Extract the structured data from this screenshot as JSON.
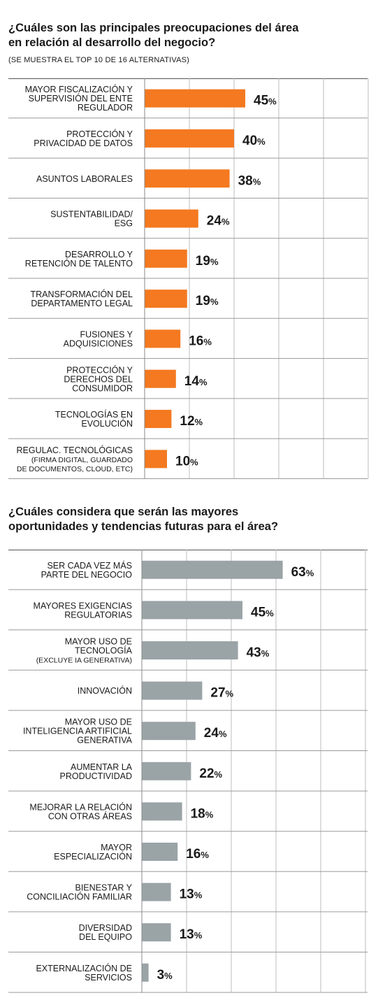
{
  "chart_data": [
    {
      "type": "bar",
      "orientation": "horizontal",
      "title": "¿Cuáles son las principales preocupaciones del área en relación al desarrollo del negocio?",
      "subtitle": "(SE MUESTRA EL TOP 10 DE 16 ALTERNATIVAS)",
      "color": "#f47920",
      "categories": [
        {
          "lines": [
            "MAYOR FISCALIZACIÓN Y",
            "SUPERVISIÓN DEL ENTE",
            "REGULADOR"
          ],
          "small": []
        },
        {
          "lines": [
            "PROTECCIÓN Y",
            "PRIVACIDAD DE DATOS"
          ],
          "small": []
        },
        {
          "lines": [
            "ASUNTOS LABORALES"
          ],
          "small": []
        },
        {
          "lines": [
            "SUSTENTABILIDAD/",
            "ESG"
          ],
          "small": []
        },
        {
          "lines": [
            "DESARROLLO Y",
            "RETENCIÓN DE TALENTO"
          ],
          "small": []
        },
        {
          "lines": [
            "TRANSFORMACIÓN DEL",
            "DEPARTAMENTO LEGAL"
          ],
          "small": []
        },
        {
          "lines": [
            "FUSIONES Y",
            "ADQUISICIONES"
          ],
          "small": []
        },
        {
          "lines": [
            "PROTECCIÓN Y",
            "DERECHOS DEL",
            "CONSUMIDOR"
          ],
          "small": []
        },
        {
          "lines": [
            "TECNOLOGÍAS EN",
            "EVOLUCIÓN"
          ],
          "small": []
        },
        {
          "lines": [
            "REGULAC. TECNOLÓGICAS"
          ],
          "small": [
            "(FIRMA DIGITAL, GUARDADO",
            "DE DOCUMENTOS, CLOUD, ETC)"
          ]
        }
      ],
      "values": [
        45,
        40,
        38,
        24,
        19,
        19,
        16,
        14,
        12,
        10
      ],
      "value_suffix": "%",
      "xlim": [
        0,
        100
      ],
      "grid": true
    },
    {
      "type": "bar",
      "orientation": "horizontal",
      "title": "¿Cuáles considera que serán las mayores oportunidades y tendencias futuras para el área?",
      "subtitle": "",
      "color": "#9aa3a6",
      "categories": [
        {
          "lines": [
            "SER CADA VEZ MÁS",
            "PARTE DEL NEGOCIO"
          ],
          "small": []
        },
        {
          "lines": [
            "MAYORES EXIGENCIAS",
            "REGULATORIAS"
          ],
          "small": []
        },
        {
          "lines": [
            "MAYOR USO DE",
            "TECNOLOGÍA"
          ],
          "small": [
            "(EXCLUYE IA GENERATIVA)"
          ]
        },
        {
          "lines": [
            "INNOVACIÓN"
          ],
          "small": []
        },
        {
          "lines": [
            "MAYOR USO DE",
            "INTELIGENCIA ARTIFICIAL",
            "GENERATIVA"
          ],
          "small": []
        },
        {
          "lines": [
            "AUMENTAR LA",
            "PRODUCTIVIDAD"
          ],
          "small": []
        },
        {
          "lines": [
            "MEJORAR LA RELACIÓN",
            "CON OTRAS ÁREAS"
          ],
          "small": []
        },
        {
          "lines": [
            "MAYOR",
            "ESPECIALIZACIÓN"
          ],
          "small": []
        },
        {
          "lines": [
            "BIENESTAR Y",
            "CONCILIACIÓN FAMILIAR"
          ],
          "small": []
        },
        {
          "lines": [
            "DIVERSIDAD",
            "DEL EQUIPO"
          ],
          "small": []
        },
        {
          "lines": [
            "EXTERNALIZACIÓN DE",
            "SERVICIOS"
          ],
          "small": []
        }
      ],
      "values": [
        63,
        45,
        43,
        27,
        24,
        22,
        18,
        16,
        13,
        13,
        3
      ],
      "value_suffix": "%",
      "xlim": [
        0,
        100
      ],
      "grid": true
    }
  ]
}
